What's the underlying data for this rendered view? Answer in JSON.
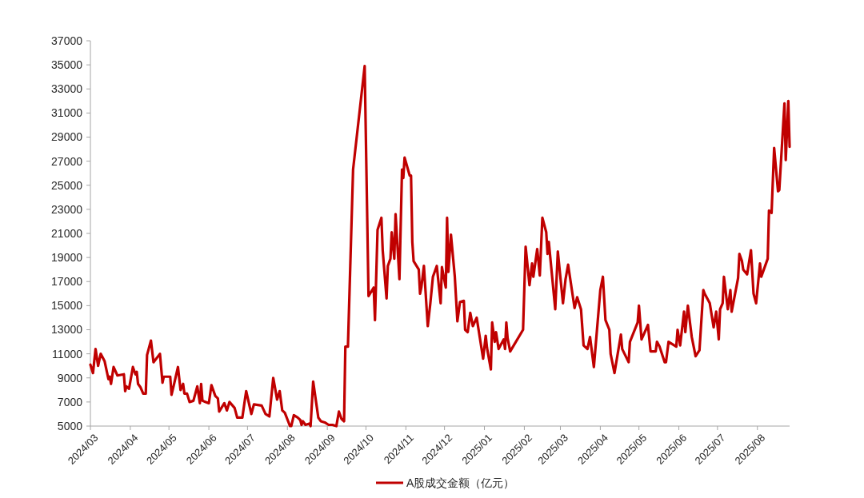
{
  "chart_data": {
    "type": "line",
    "legend": "bottom",
    "grid": false,
    "marker": "none",
    "line_style": "solid",
    "xlim": [
      "2024-03-01",
      "2025-08-26"
    ],
    "xticks": [
      {
        "value": "2024-03-01",
        "label": "2024/03"
      },
      {
        "value": "2024-04-01",
        "label": "2024/04"
      },
      {
        "value": "2024-05-01",
        "label": "2024/05"
      },
      {
        "value": "2024-06-01",
        "label": "2024/06"
      },
      {
        "value": "2024-07-01",
        "label": "2024/07"
      },
      {
        "value": "2024-08-01",
        "label": "2024/08"
      },
      {
        "value": "2024-09-01",
        "label": "2024/09"
      },
      {
        "value": "2024-10-01",
        "label": "2024/10"
      },
      {
        "value": "2024-11-01",
        "label": "2024/11"
      },
      {
        "value": "2024-12-01",
        "label": "2024/12"
      },
      {
        "value": "2025-01-01",
        "label": "2025/01"
      },
      {
        "value": "2025-02-01",
        "label": "2025/02"
      },
      {
        "value": "2025-03-01",
        "label": "2025/03"
      },
      {
        "value": "2025-04-01",
        "label": "2025/04"
      },
      {
        "value": "2025-05-01",
        "label": "2025/05"
      },
      {
        "value": "2025-06-01",
        "label": "2025/06"
      },
      {
        "value": "2025-07-01",
        "label": "2025/07"
      },
      {
        "value": "2025-08-01",
        "label": "2025/08"
      }
    ],
    "ylim": [
      5000,
      37000
    ],
    "yticks": [
      5000,
      7000,
      9000,
      11000,
      13000,
      15000,
      17000,
      19000,
      21000,
      23000,
      25000,
      27000,
      29000,
      31000,
      33000,
      35000,
      37000
    ],
    "x": [
      "2024-03-01",
      "2024-03-03",
      "2024-03-05",
      "2024-03-07",
      "2024-03-09",
      "2024-03-12",
      "2024-03-15",
      "2024-03-16",
      "2024-03-17",
      "2024-03-19",
      "2024-03-22",
      "2024-03-27",
      "2024-03-28",
      "2024-03-29",
      "2024-03-31",
      "2024-04-03",
      "2024-04-05",
      "2024-04-06",
      "2024-04-07",
      "2024-04-09",
      "2024-04-11",
      "2024-04-13",
      "2024-04-14",
      "2024-04-17",
      "2024-04-19",
      "2024-04-24",
      "2024-04-26",
      "2024-04-27",
      "2024-05-02",
      "2024-05-03",
      "2024-05-05",
      "2024-05-08",
      "2024-05-10",
      "2024-05-12",
      "2024-05-13",
      "2024-05-15",
      "2024-05-17",
      "2024-05-20",
      "2024-05-23",
      "2024-05-25",
      "2024-05-26",
      "2024-05-27",
      "2024-06-01",
      "2024-06-03",
      "2024-06-06",
      "2024-06-08",
      "2024-06-09",
      "2024-06-13",
      "2024-06-15",
      "2024-06-17",
      "2024-06-21",
      "2024-06-23",
      "2024-06-27",
      "2024-06-29",
      "2024-06-30",
      "2024-07-04",
      "2024-07-06",
      "2024-07-12",
      "2024-07-15",
      "2024-07-18",
      "2024-07-21",
      "2024-07-24",
      "2024-07-26",
      "2024-07-28",
      "2024-07-30",
      "2024-08-03",
      "2024-08-04",
      "2024-08-06",
      "2024-08-09",
      "2024-08-11",
      "2024-08-12",
      "2024-08-13",
      "2024-08-15",
      "2024-08-18",
      "2024-08-19",
      "2024-08-21",
      "2024-08-25",
      "2024-08-27",
      "2024-08-30",
      "2024-09-02",
      "2024-09-05",
      "2024-09-08",
      "2024-09-10",
      "2024-09-12",
      "2024-09-14",
      "2024-09-15",
      "2024-09-17",
      "2024-09-21",
      "2024-09-30",
      "2024-10-03",
      "2024-10-07",
      "2024-10-08",
      "2024-10-10",
      "2024-10-13",
      "2024-10-14",
      "2024-10-17",
      "2024-10-18",
      "2024-10-20",
      "2024-10-21",
      "2024-10-23",
      "2024-10-24",
      "2024-10-27",
      "2024-10-29",
      "2024-10-30",
      "2024-10-31",
      "2024-11-04",
      "2024-11-05",
      "2024-11-06",
      "2024-11-07",
      "2024-11-11",
      "2024-11-12",
      "2024-11-13",
      "2024-11-15",
      "2024-11-18",
      "2024-11-20",
      "2024-11-22",
      "2024-11-25",
      "2024-11-28",
      "2024-11-29",
      "2024-12-02",
      "2024-12-03",
      "2024-12-04",
      "2024-12-06",
      "2024-12-09",
      "2024-12-11",
      "2024-12-13",
      "2024-12-16",
      "2024-12-17",
      "2024-12-19",
      "2024-12-21",
      "2024-12-23",
      "2024-12-26",
      "2024-12-31",
      "2025-01-02",
      "2025-01-03",
      "2025-01-06",
      "2025-01-07",
      "2025-01-09",
      "2025-01-10",
      "2025-01-12",
      "2025-01-16",
      "2025-01-17",
      "2025-01-18",
      "2025-01-19",
      "2025-01-21",
      "2025-01-31",
      "2025-02-02",
      "2025-02-05",
      "2025-02-07",
      "2025-02-08",
      "2025-02-11",
      "2025-02-13",
      "2025-02-15",
      "2025-02-18",
      "2025-02-19",
      "2025-02-20",
      "2025-02-25",
      "2025-02-27",
      "2025-03-03",
      "2025-03-05",
      "2025-03-07",
      "2025-03-12",
      "2025-03-14",
      "2025-03-17",
      "2025-03-19",
      "2025-03-22",
      "2025-03-24",
      "2025-03-27",
      "2025-04-01",
      "2025-04-03",
      "2025-04-05",
      "2025-04-08",
      "2025-04-09",
      "2025-04-12",
      "2025-04-17",
      "2025-04-18",
      "2025-04-23",
      "2025-04-24",
      "2025-04-30",
      "2025-05-01",
      "2025-05-03",
      "2025-05-08",
      "2025-05-10",
      "2025-05-14",
      "2025-05-15",
      "2025-05-17",
      "2025-05-21",
      "2025-05-22",
      "2025-05-24",
      "2025-05-30",
      "2025-05-31",
      "2025-06-02",
      "2025-06-05",
      "2025-06-06",
      "2025-06-08",
      "2025-06-11",
      "2025-06-14",
      "2025-06-17",
      "2025-06-20",
      "2025-06-21",
      "2025-06-25",
      "2025-06-28",
      "2025-06-30",
      "2025-07-02",
      "2025-07-03",
      "2025-07-05",
      "2025-07-06",
      "2025-07-09",
      "2025-07-11",
      "2025-07-12",
      "2025-07-17",
      "2025-07-18",
      "2025-07-20",
      "2025-07-21",
      "2025-07-24",
      "2025-07-27",
      "2025-07-29",
      "2025-07-31",
      "2025-08-03",
      "2025-08-04",
      "2025-08-09",
      "2025-08-10",
      "2025-08-12",
      "2025-08-14",
      "2025-08-17",
      "2025-08-18",
      "2025-08-22",
      "2025-08-23",
      "2025-08-25",
      "2025-08-26"
    ],
    "series": [
      {
        "name": "A股成交金额（亿元）",
        "color": "#c00000",
        "values": [
          10100,
          9400,
          11400,
          10000,
          11000,
          10400,
          8900,
          9100,
          8500,
          9900,
          9200,
          9300,
          7900,
          8300,
          8100,
          9900,
          9300,
          9500,
          8500,
          8200,
          7700,
          7700,
          10900,
          12100,
          10300,
          11000,
          8600,
          9100,
          9100,
          7600,
          8500,
          9900,
          8000,
          8500,
          7700,
          7700,
          7000,
          7100,
          8300,
          6900,
          8500,
          7100,
          6900,
          8400,
          7500,
          7300,
          6200,
          6900,
          6300,
          7000,
          6500,
          5700,
          5700,
          7200,
          7900,
          6000,
          6800,
          6700,
          6000,
          5800,
          9000,
          7200,
          7900,
          6300,
          6100,
          5000,
          5000,
          5900,
          5700,
          5500,
          5100,
          5400,
          5100,
          5200,
          5000,
          8700,
          5700,
          5400,
          5300,
          5100,
          5100,
          5000,
          6200,
          5600,
          5400,
          11600,
          11600,
          26300,
          34900,
          15800,
          16500,
          13800,
          21300,
          22300,
          19600,
          15600,
          18300,
          18900,
          21100,
          18900,
          22600,
          17200,
          26300,
          25600,
          27300,
          25800,
          25800,
          20300,
          18700,
          18000,
          16000,
          16500,
          18300,
          13300,
          15200,
          17400,
          18300,
          15200,
          18200,
          16500,
          22300,
          17800,
          20900,
          17400,
          13700,
          15300,
          15400,
          13000,
          12800,
          14400,
          13300,
          14000,
          10600,
          12500,
          11500,
          9700,
          13600,
          12000,
          12800,
          11400,
          12200,
          11400,
          13600,
          12300,
          11200,
          13000,
          19900,
          16700,
          18500,
          17400,
          19700,
          17500,
          22300,
          21100,
          19300,
          20300,
          14700,
          19500,
          15200,
          17200,
          18400,
          14800,
          15700,
          14700,
          11700,
          11400,
          12400,
          9900,
          16300,
          17400,
          13800,
          13000,
          11000,
          9400,
          12600,
          11400,
          10300,
          12000,
          13600,
          15000,
          12200,
          13400,
          11200,
          11200,
          12000,
          11600,
          10300,
          10300,
          12000,
          11600,
          13000,
          11700,
          14500,
          12800,
          15000,
          12400,
          10800,
          11300,
          16300,
          16000,
          15200,
          13200,
          14500,
          12200,
          14700,
          15200,
          17400,
          14700,
          16300,
          14500,
          17300,
          19300,
          18700,
          18000,
          17600,
          19600,
          16000,
          15200,
          18500,
          17400,
          18900,
          22900,
          22700,
          28100,
          24500,
          24600,
          31800,
          27100,
          32000,
          28200
        ]
      }
    ]
  }
}
